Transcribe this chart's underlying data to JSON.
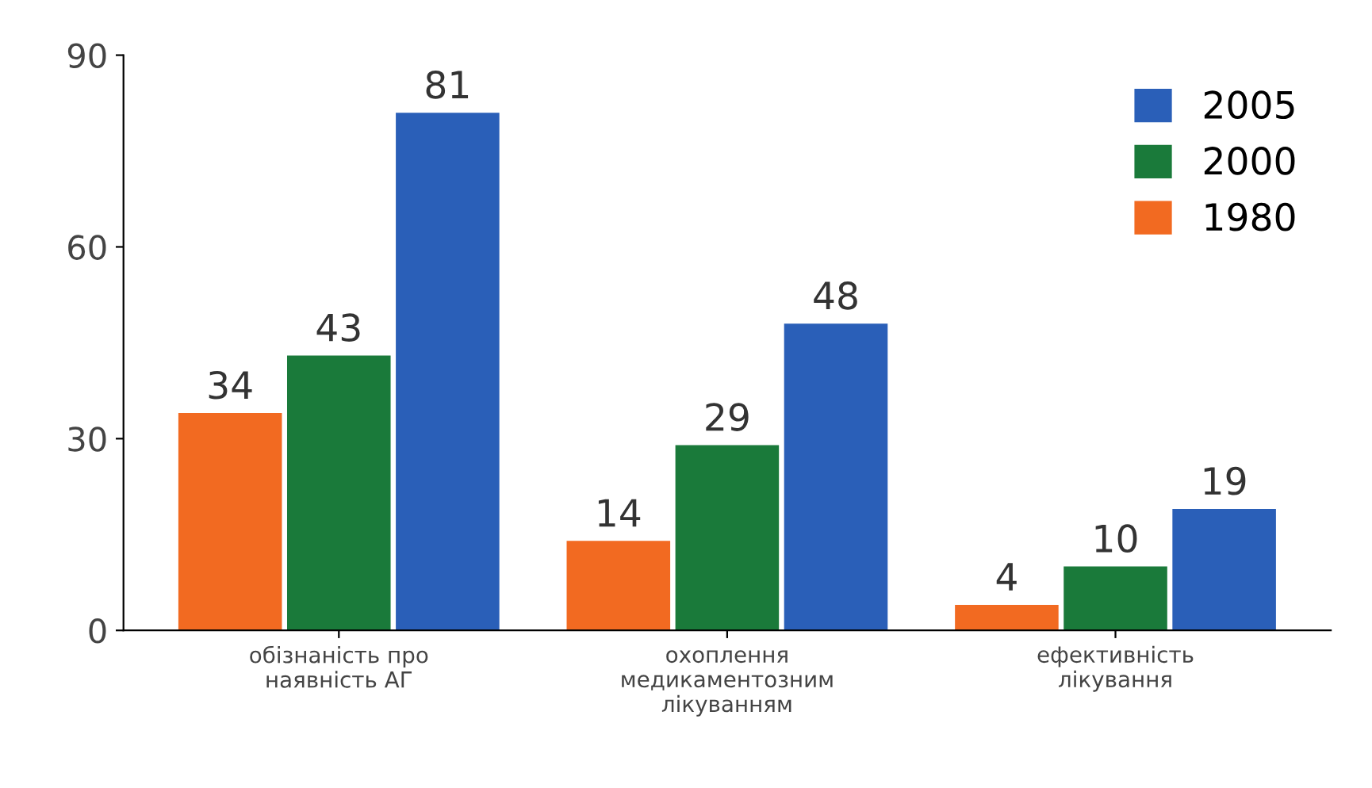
{
  "chart_data": {
    "type": "bar",
    "categories": [
      "обізнаність про\nнаявність АГ",
      "охоплення\nмедикаментозним\nлікуванням",
      "ефективність\nлікування"
    ],
    "series": [
      {
        "name": "1980",
        "color": "#f26a21",
        "values": [
          34,
          14,
          4
        ]
      },
      {
        "name": "2000",
        "color": "#1a7a3a",
        "values": [
          43,
          29,
          10
        ]
      },
      {
        "name": "2005",
        "color": "#2a5fb8",
        "values": [
          81,
          48,
          19
        ]
      }
    ],
    "ylim": [
      0,
      90
    ],
    "yticks": [
      0,
      30,
      60,
      90
    ],
    "grid": false,
    "legend": "top right",
    "data_labels": true
  }
}
